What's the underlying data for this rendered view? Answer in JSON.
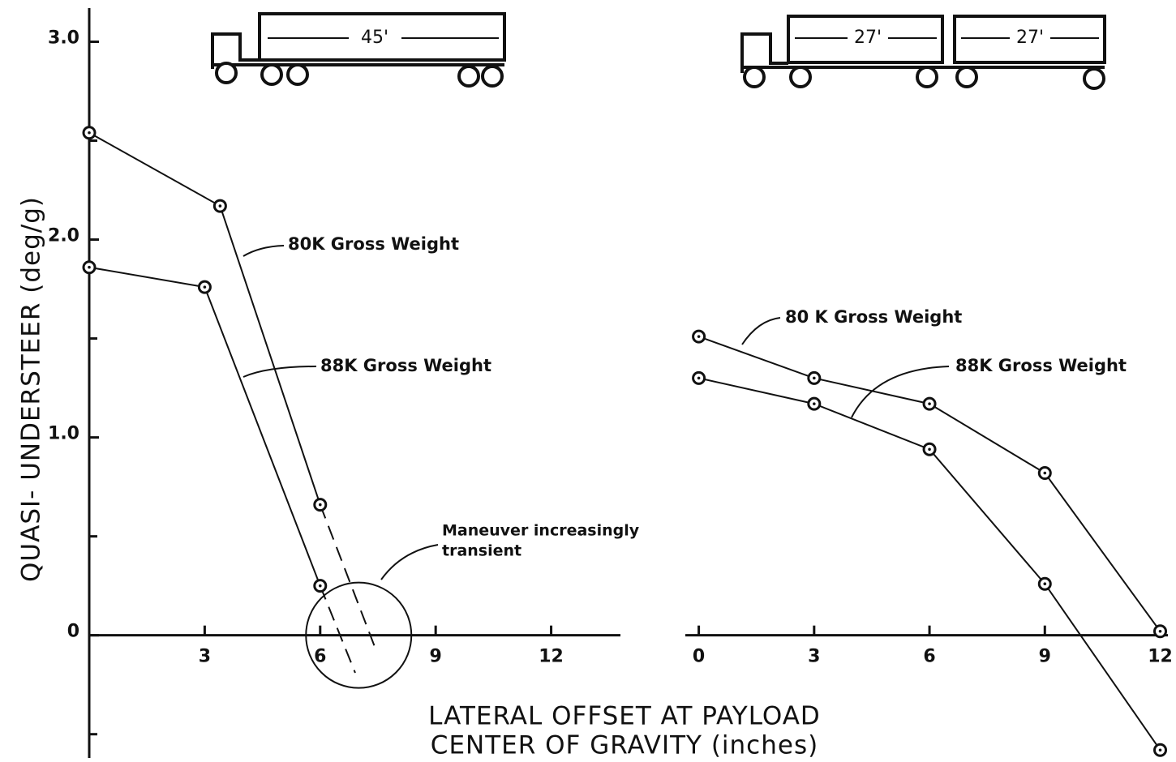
{
  "chart_data": [
    {
      "type": "line",
      "ylabel": "QUASI- UNDERSTEER  (deg/g)",
      "xlabel": [
        "LATERAL OFFSET AT PAYLOAD",
        "CENTER OF GRAVITY (inches)"
      ],
      "trailer_lengths": [
        "45'"
      ],
      "annotation": [
        "Maneuver increasingly",
        "transient"
      ],
      "xlim": [
        0,
        13.8
      ],
      "xticks": [
        3,
        6,
        9,
        12
      ],
      "ylim": [
        -0.62,
        3.17
      ],
      "yticks": [
        0,
        {
          "value": 1,
          "label": "1.0"
        },
        {
          "value": 2,
          "label": "2.0"
        },
        {
          "value": 3,
          "label": "3.0"
        }
      ],
      "yminorticks": [
        -0.5,
        0.5,
        1.5,
        2.5
      ],
      "series": [
        {
          "name": "80K Gross Weight",
          "color": "#111",
          "x": [
            0,
            3.4,
            6
          ],
          "values": [
            2.54,
            2.17,
            0.66
          ],
          "dashed_to": {
            "x": 7.46,
            "y": -0.08
          }
        },
        {
          "name": "88K Gross Weight",
          "color": "#111",
          "x": [
            0,
            3,
            6
          ],
          "values": [
            1.86,
            1.76,
            0.25
          ],
          "dashed_to": {
            "x": 6.91,
            "y": -0.19
          }
        }
      ]
    },
    {
      "type": "line",
      "trailer_lengths": [
        "27'",
        "27'"
      ],
      "xlim": [
        -0.35,
        12.2
      ],
      "xticks": [
        0,
        3,
        6,
        9,
        12
      ],
      "ylim": [
        -0.62,
        3.17
      ],
      "series": [
        {
          "name": "80 K Gross Weight",
          "color": "#111",
          "x": [
            0,
            3,
            6,
            9,
            12
          ],
          "values": [
            1.51,
            1.3,
            1.17,
            0.82,
            0.02
          ]
        },
        {
          "name": "88K Gross Weight",
          "color": "#111",
          "x": [
            0,
            3,
            6,
            9,
            12
          ],
          "values": [
            1.3,
            1.17,
            0.94,
            0.26,
            -0.58
          ]
        }
      ]
    }
  ]
}
